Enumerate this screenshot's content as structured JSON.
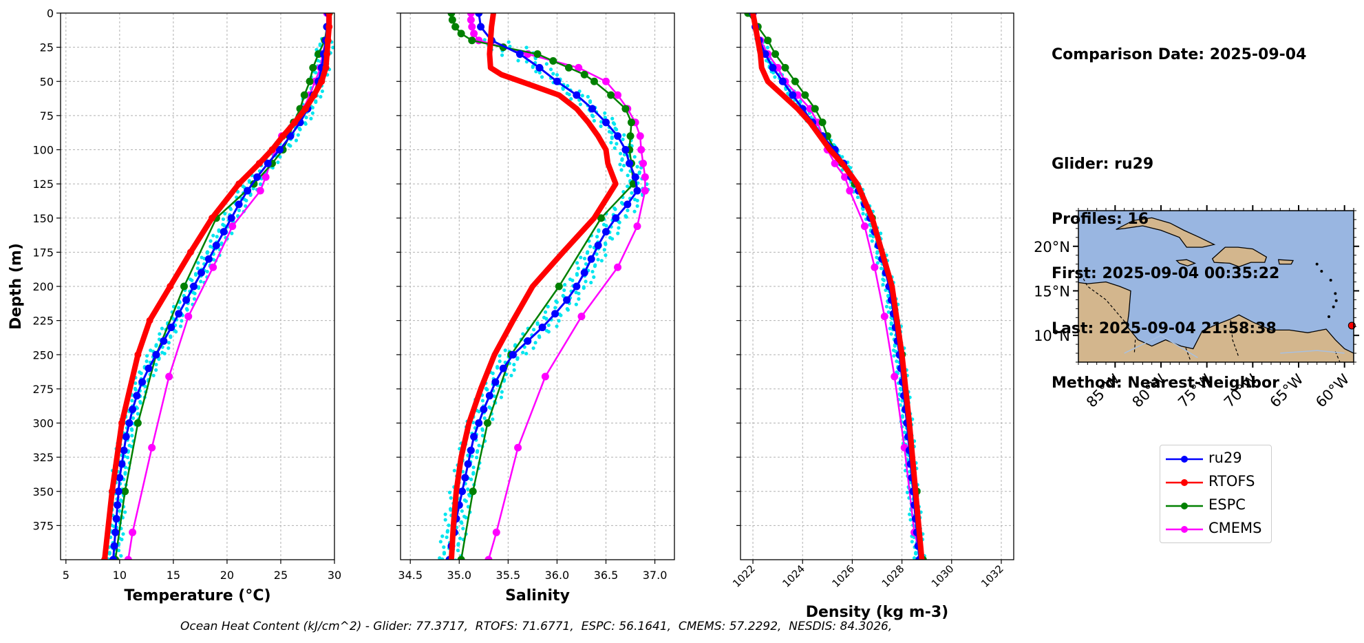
{
  "info": {
    "comparison_date": "Comparison Date: 2025-09-04",
    "glider": "Glider: ru29",
    "profiles": "Profiles: 16",
    "first": "First: 2025-09-04 00:35:22",
    "last": "Last: 2025-09-04 21:58:38",
    "method": "Method: Nearest-Neighbor"
  },
  "footer": "Ocean Heat Content (kJ/cm^2) - Glider: 77.3717,  RTOFS: 71.6771,  ESPC: 56.1641,  CMEMS: 57.2292,  NESDIS: 84.3026,",
  "colors": {
    "glider": "#0000ff",
    "glider_scatter": "#00e5ee",
    "rtofs": "#ff0000",
    "espc": "#008000",
    "cmems": "#ff00ff",
    "map_ocean": "#99b6e1",
    "map_land": "#d3b68d"
  },
  "legend": [
    {
      "label": "ru29",
      "color": "#0000ff"
    },
    {
      "label": "RTOFS",
      "color": "#ff0000"
    },
    {
      "label": "ESPC",
      "color": "#008000"
    },
    {
      "label": "CMEMS",
      "color": "#ff00ff"
    }
  ],
  "map": {
    "lat_ticks": [
      {
        "v": 20,
        "label": "20°N"
      },
      {
        "v": 15,
        "label": "15°N"
      },
      {
        "v": 10,
        "label": "10°N"
      }
    ],
    "lon_ticks": [
      {
        "v": -85,
        "label": "85°W"
      },
      {
        "v": -80,
        "label": "80°W"
      },
      {
        "v": -75,
        "label": "75°W"
      },
      {
        "v": -70,
        "label": "70°W"
      },
      {
        "v": -65,
        "label": "65°W"
      },
      {
        "v": -60,
        "label": "60°W"
      }
    ],
    "lon_range": [
      -89,
      -59
    ],
    "lat_range": [
      7,
      24
    ],
    "glider_position": {
      "lon": -59.2,
      "lat": 11.1
    }
  },
  "chart_data": [
    {
      "type": "line",
      "xlabel": "Temperature (°C)",
      "ylabel": "Depth (m)",
      "xlim": [
        4.5,
        30
      ],
      "ylim": [
        400,
        0
      ],
      "xticks": [
        5,
        10,
        15,
        20,
        25,
        30
      ],
      "yticks": [
        0,
        25,
        50,
        75,
        100,
        125,
        150,
        175,
        200,
        225,
        250,
        275,
        300,
        325,
        350,
        375
      ],
      "grid": true,
      "series": [
        {
          "name": "ru29",
          "depth": [
            0,
            10,
            20,
            30,
            40,
            50,
            60,
            70,
            80,
            90,
            100,
            110,
            120,
            130,
            140,
            150,
            160,
            170,
            180,
            190,
            200,
            210,
            220,
            230,
            240,
            250,
            260,
            270,
            280,
            290,
            300,
            310,
            320,
            330,
            340,
            350,
            360,
            370,
            380,
            390,
            400
          ],
          "values": [
            29.4,
            29.3,
            29.2,
            29.0,
            28.8,
            28.5,
            28.0,
            27.5,
            26.8,
            25.9,
            24.9,
            23.8,
            22.8,
            21.9,
            21.1,
            20.4,
            19.7,
            19.0,
            18.3,
            17.6,
            16.9,
            16.2,
            15.5,
            14.8,
            14.1,
            13.4,
            12.7,
            12.1,
            11.6,
            11.2,
            10.9,
            10.6,
            10.4,
            10.2,
            10.0,
            9.9,
            9.8,
            9.7,
            9.6,
            9.5,
            9.4
          ]
        },
        {
          "name": "RTOFS",
          "depth": [
            0,
            10,
            20,
            30,
            40,
            50,
            60,
            70,
            80,
            90,
            100,
            110,
            125,
            150,
            175,
            200,
            225,
            250,
            300,
            350,
            400
          ],
          "values": [
            29.5,
            29.5,
            29.4,
            29.3,
            29.2,
            28.8,
            28.1,
            27.3,
            26.3,
            25.2,
            24.2,
            23.0,
            21.1,
            18.6,
            16.6,
            14.7,
            12.8,
            11.7,
            10.2,
            9.3,
            8.6
          ]
        },
        {
          "name": "ESPC",
          "depth": [
            0,
            10,
            20,
            30,
            40,
            50,
            60,
            70,
            80,
            90,
            100,
            110,
            125,
            150,
            200,
            250,
            300,
            350,
            400
          ],
          "values": [
            29.5,
            29.3,
            29.1,
            28.5,
            28.0,
            27.7,
            27.2,
            26.8,
            26.2,
            25.8,
            25.2,
            24.2,
            22.5,
            19.0,
            16.0,
            13.4,
            11.7,
            10.5,
            9.6
          ]
        },
        {
          "name": "CMEMS",
          "depth": [
            0,
            10,
            20,
            30,
            40,
            50,
            60,
            70,
            80,
            90,
            100,
            110,
            120,
            130,
            156,
            186,
            222,
            266,
            318,
            380,
            400
          ],
          "values": [
            29.3,
            29.3,
            29.2,
            28.9,
            28.7,
            28.2,
            27.7,
            27.1,
            26.3,
            25.1,
            24.5,
            24.0,
            23.6,
            23.1,
            20.5,
            18.7,
            16.4,
            14.6,
            13.0,
            11.2,
            10.8
          ]
        }
      ]
    },
    {
      "type": "line",
      "xlabel": "Salinity",
      "xlim": [
        34.4,
        37.2
      ],
      "ylim": [
        400,
        0
      ],
      "xticks": [
        34.5,
        35.0,
        35.5,
        36.0,
        36.5,
        37.0
      ],
      "grid": true,
      "series": [
        {
          "name": "ru29",
          "depth": [
            0,
            10,
            20,
            30,
            40,
            50,
            60,
            70,
            80,
            90,
            100,
            110,
            120,
            130,
            140,
            150,
            160,
            170,
            180,
            190,
            200,
            210,
            220,
            230,
            240,
            250,
            260,
            270,
            280,
            290,
            300,
            310,
            320,
            330,
            340,
            350,
            360,
            370,
            380,
            390,
            400
          ],
          "values": [
            35.2,
            35.22,
            35.33,
            35.62,
            35.82,
            36.0,
            36.2,
            36.36,
            36.5,
            36.62,
            36.7,
            36.74,
            36.8,
            36.82,
            36.72,
            36.6,
            36.5,
            36.42,
            36.35,
            36.28,
            36.2,
            36.1,
            35.98,
            35.85,
            35.7,
            35.55,
            35.45,
            35.37,
            35.31,
            35.25,
            35.2,
            35.15,
            35.12,
            35.09,
            35.06,
            35.03,
            35.0,
            34.97,
            34.95,
            34.92,
            34.9
          ]
        },
        {
          "name": "RTOFS",
          "depth": [
            0,
            10,
            20,
            30,
            40,
            45,
            50,
            60,
            70,
            80,
            90,
            100,
            110,
            125,
            150,
            175,
            200,
            225,
            250,
            275,
            300,
            325,
            350,
            375,
            400
          ],
          "values": [
            35.35,
            35.33,
            35.32,
            35.31,
            35.32,
            35.43,
            35.63,
            36.02,
            36.2,
            36.32,
            36.42,
            36.5,
            36.52,
            36.6,
            36.38,
            36.06,
            35.75,
            35.55,
            35.36,
            35.22,
            35.1,
            35.02,
            34.97,
            34.94,
            34.92
          ]
        },
        {
          "name": "ESPC",
          "depth": [
            0,
            5,
            10,
            15,
            20,
            25,
            30,
            35,
            40,
            45,
            50,
            60,
            70,
            80,
            90,
            100,
            110,
            125,
            150,
            200,
            250,
            300,
            350,
            400
          ],
          "values": [
            34.92,
            34.93,
            34.96,
            35.02,
            35.13,
            35.45,
            35.8,
            35.96,
            36.12,
            36.28,
            36.38,
            36.55,
            36.7,
            36.76,
            36.75,
            36.74,
            36.76,
            36.78,
            36.45,
            36.02,
            35.53,
            35.29,
            35.14,
            35.02
          ]
        },
        {
          "name": "CMEMS",
          "depth": [
            0,
            5,
            10,
            15,
            20,
            25,
            30,
            40,
            50,
            60,
            70,
            80,
            90,
            100,
            110,
            120,
            130,
            156,
            186,
            222,
            266,
            318,
            380,
            400
          ],
          "values": [
            35.12,
            35.12,
            35.13,
            35.15,
            35.2,
            35.45,
            35.7,
            36.22,
            36.5,
            36.62,
            36.72,
            36.8,
            36.85,
            36.86,
            36.88,
            36.9,
            36.9,
            36.82,
            36.62,
            36.25,
            35.88,
            35.6,
            35.38,
            35.3
          ]
        }
      ]
    },
    {
      "type": "line",
      "xlabel": "Density (kg m-3)",
      "xlim": [
        1021.5,
        1032.5
      ],
      "ylim": [
        400,
        0
      ],
      "xticks": [
        1022,
        1024,
        1026,
        1028,
        1030,
        1032
      ],
      "grid": true,
      "series": [
        {
          "name": "ru29",
          "depth": [
            0,
            10,
            20,
            30,
            40,
            50,
            60,
            70,
            80,
            90,
            100,
            110,
            120,
            130,
            140,
            150,
            160,
            170,
            180,
            190,
            200,
            210,
            220,
            230,
            240,
            250,
            260,
            270,
            280,
            290,
            300,
            310,
            320,
            330,
            340,
            350,
            360,
            370,
            380,
            390,
            400
          ],
          "values": [
            1022.0,
            1022.1,
            1022.25,
            1022.5,
            1022.8,
            1023.2,
            1023.6,
            1024.0,
            1024.4,
            1024.8,
            1025.3,
            1025.65,
            1025.95,
            1026.25,
            1026.5,
            1026.72,
            1026.9,
            1027.05,
            1027.2,
            1027.35,
            1027.48,
            1027.58,
            1027.66,
            1027.74,
            1027.82,
            1027.9,
            1027.96,
            1028.02,
            1028.08,
            1028.14,
            1028.2,
            1028.25,
            1028.3,
            1028.35,
            1028.4,
            1028.45,
            1028.5,
            1028.55,
            1028.6,
            1028.65,
            1028.7
          ]
        },
        {
          "name": "RTOFS",
          "depth": [
            0,
            10,
            20,
            30,
            40,
            50,
            60,
            70,
            80,
            90,
            100,
            110,
            125,
            150,
            175,
            200,
            225,
            250,
            300,
            350,
            400
          ],
          "values": [
            1022.0,
            1022.1,
            1022.2,
            1022.3,
            1022.35,
            1022.6,
            1023.2,
            1023.8,
            1024.3,
            1024.7,
            1025.1,
            1025.6,
            1026.2,
            1026.8,
            1027.2,
            1027.6,
            1027.8,
            1028.0,
            1028.3,
            1028.55,
            1028.8
          ]
        },
        {
          "name": "ESPC",
          "depth": [
            0,
            10,
            20,
            30,
            40,
            50,
            60,
            70,
            80,
            90,
            100,
            110,
            125,
            150,
            200,
            250,
            300,
            350,
            400
          ],
          "values": [
            1021.8,
            1022.2,
            1022.6,
            1022.9,
            1023.3,
            1023.7,
            1024.1,
            1024.5,
            1024.8,
            1025.0,
            1025.3,
            1025.6,
            1026.1,
            1026.8,
            1027.5,
            1028.0,
            1028.2,
            1028.6,
            1028.85
          ]
        },
        {
          "name": "CMEMS",
          "depth": [
            0,
            10,
            20,
            30,
            40,
            50,
            60,
            70,
            80,
            90,
            100,
            110,
            120,
            130,
            156,
            186,
            222,
            266,
            318,
            380,
            400
          ],
          "values": [
            1022.0,
            1022.1,
            1022.3,
            1022.6,
            1023.0,
            1023.3,
            1023.8,
            1024.3,
            1024.6,
            1024.8,
            1025.0,
            1025.3,
            1025.7,
            1025.9,
            1026.5,
            1026.9,
            1027.3,
            1027.7,
            1028.1,
            1028.5,
            1028.8
          ]
        }
      ]
    }
  ]
}
